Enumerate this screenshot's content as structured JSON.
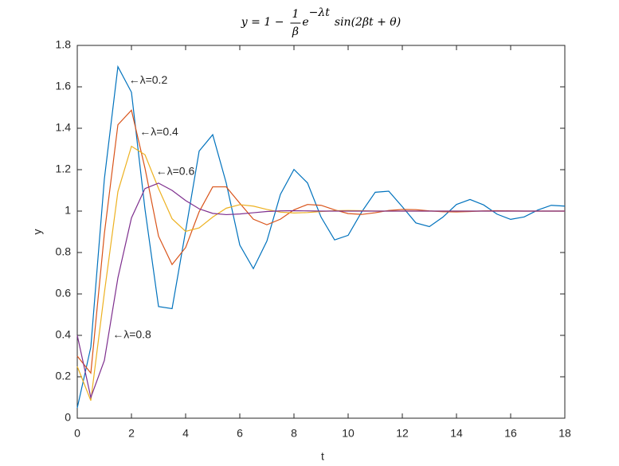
{
  "chart_data": {
    "type": "line",
    "title": {
      "lead": "y = 1 −",
      "numerator": "1",
      "denominator": "β",
      "base": "e",
      "exponent": "−λt",
      "tail": "sin(2βt + θ)"
    },
    "x_label": "t",
    "y_label": "y",
    "x": [
      0,
      0.5,
      1,
      1.5,
      2,
      2.5,
      3,
      3.5,
      4,
      4.5,
      5,
      5.5,
      6,
      6.5,
      7,
      7.5,
      8,
      8.5,
      9,
      9.5,
      10,
      10.5,
      11,
      11.5,
      12,
      12.5,
      13,
      13.5,
      14,
      14.5,
      15,
      15.5,
      16,
      16.5,
      17,
      17.5,
      18
    ],
    "series": [
      {
        "name": "λ=0.2",
        "color": "#0072bd",
        "values": [
          0.05,
          0.343,
          1.155,
          1.697,
          1.574,
          1.009,
          0.539,
          0.529,
          0.904,
          1.29,
          1.369,
          1.135,
          0.836,
          0.722,
          0.855,
          1.081,
          1.201,
          1.136,
          0.971,
          0.861,
          0.883,
          0.996,
          1.091,
          1.096,
          1.021,
          0.943,
          0.925,
          0.971,
          1.032,
          1.056,
          1.03,
          0.985,
          0.96,
          0.972,
          1.005,
          1.028,
          1.024
        ]
      },
      {
        "name": "λ=0.4",
        "color": "#d95319",
        "values": [
          0.3,
          0.218,
          0.891,
          1.417,
          1.487,
          1.207,
          0.879,
          0.742,
          0.824,
          0.997,
          1.117,
          1.117,
          1.038,
          0.961,
          0.934,
          0.961,
          1.006,
          1.032,
          1.028,
          1.006,
          0.988,
          0.984,
          0.992,
          1.003,
          1.008,
          1.007,
          1.001,
          0.997,
          0.996,
          0.998,
          1.001,
          1.002,
          1.001,
          1,
          1,
          1,
          1
        ]
      },
      {
        "name": "λ=0.6",
        "color": "#edb120",
        "values": [
          0.25,
          0.085,
          0.605,
          1.094,
          1.313,
          1.272,
          1.109,
          0.963,
          0.902,
          0.919,
          0.971,
          1.014,
          1.031,
          1.024,
          1.008,
          0.995,
          0.991,
          0.993,
          0.998,
          1.002,
          1.003,
          1.002,
          1,
          1,
          1,
          1,
          1,
          1,
          1,
          1,
          1,
          1,
          1,
          1,
          1,
          1,
          1
        ]
      },
      {
        "name": "λ=0.8",
        "color": "#7e2f8e",
        "values": [
          0.4,
          0.1,
          0.279,
          0.678,
          0.967,
          1.109,
          1.135,
          1.1,
          1.051,
          1.011,
          0.989,
          0.983,
          0.986,
          0.992,
          0.998,
          1.001,
          1.002,
          1.001,
          1,
          1,
          1,
          1,
          1,
          1,
          1,
          1,
          1,
          1,
          1,
          1,
          1,
          1,
          1,
          1,
          1,
          1,
          1
        ]
      }
    ],
    "annotations": [
      {
        "text": "←λ=0.2",
        "x": 1.9,
        "y": 1.63
      },
      {
        "text": "←λ=0.4",
        "x": 2.3,
        "y": 1.38
      },
      {
        "text": "←λ=0.6",
        "x": 2.9,
        "y": 1.19
      },
      {
        "text": "←λ=0.8",
        "x": 1.3,
        "y": 0.4
      }
    ],
    "xlim": [
      0,
      18
    ],
    "xticks": [
      0,
      2,
      4,
      6,
      8,
      10,
      12,
      14,
      16,
      18
    ],
    "ylim": [
      0,
      1.8
    ],
    "yticks": [
      0,
      0.2,
      0.4,
      0.6,
      0.8,
      1,
      1.2,
      1.4,
      1.6,
      1.8
    ],
    "grid": false
  }
}
